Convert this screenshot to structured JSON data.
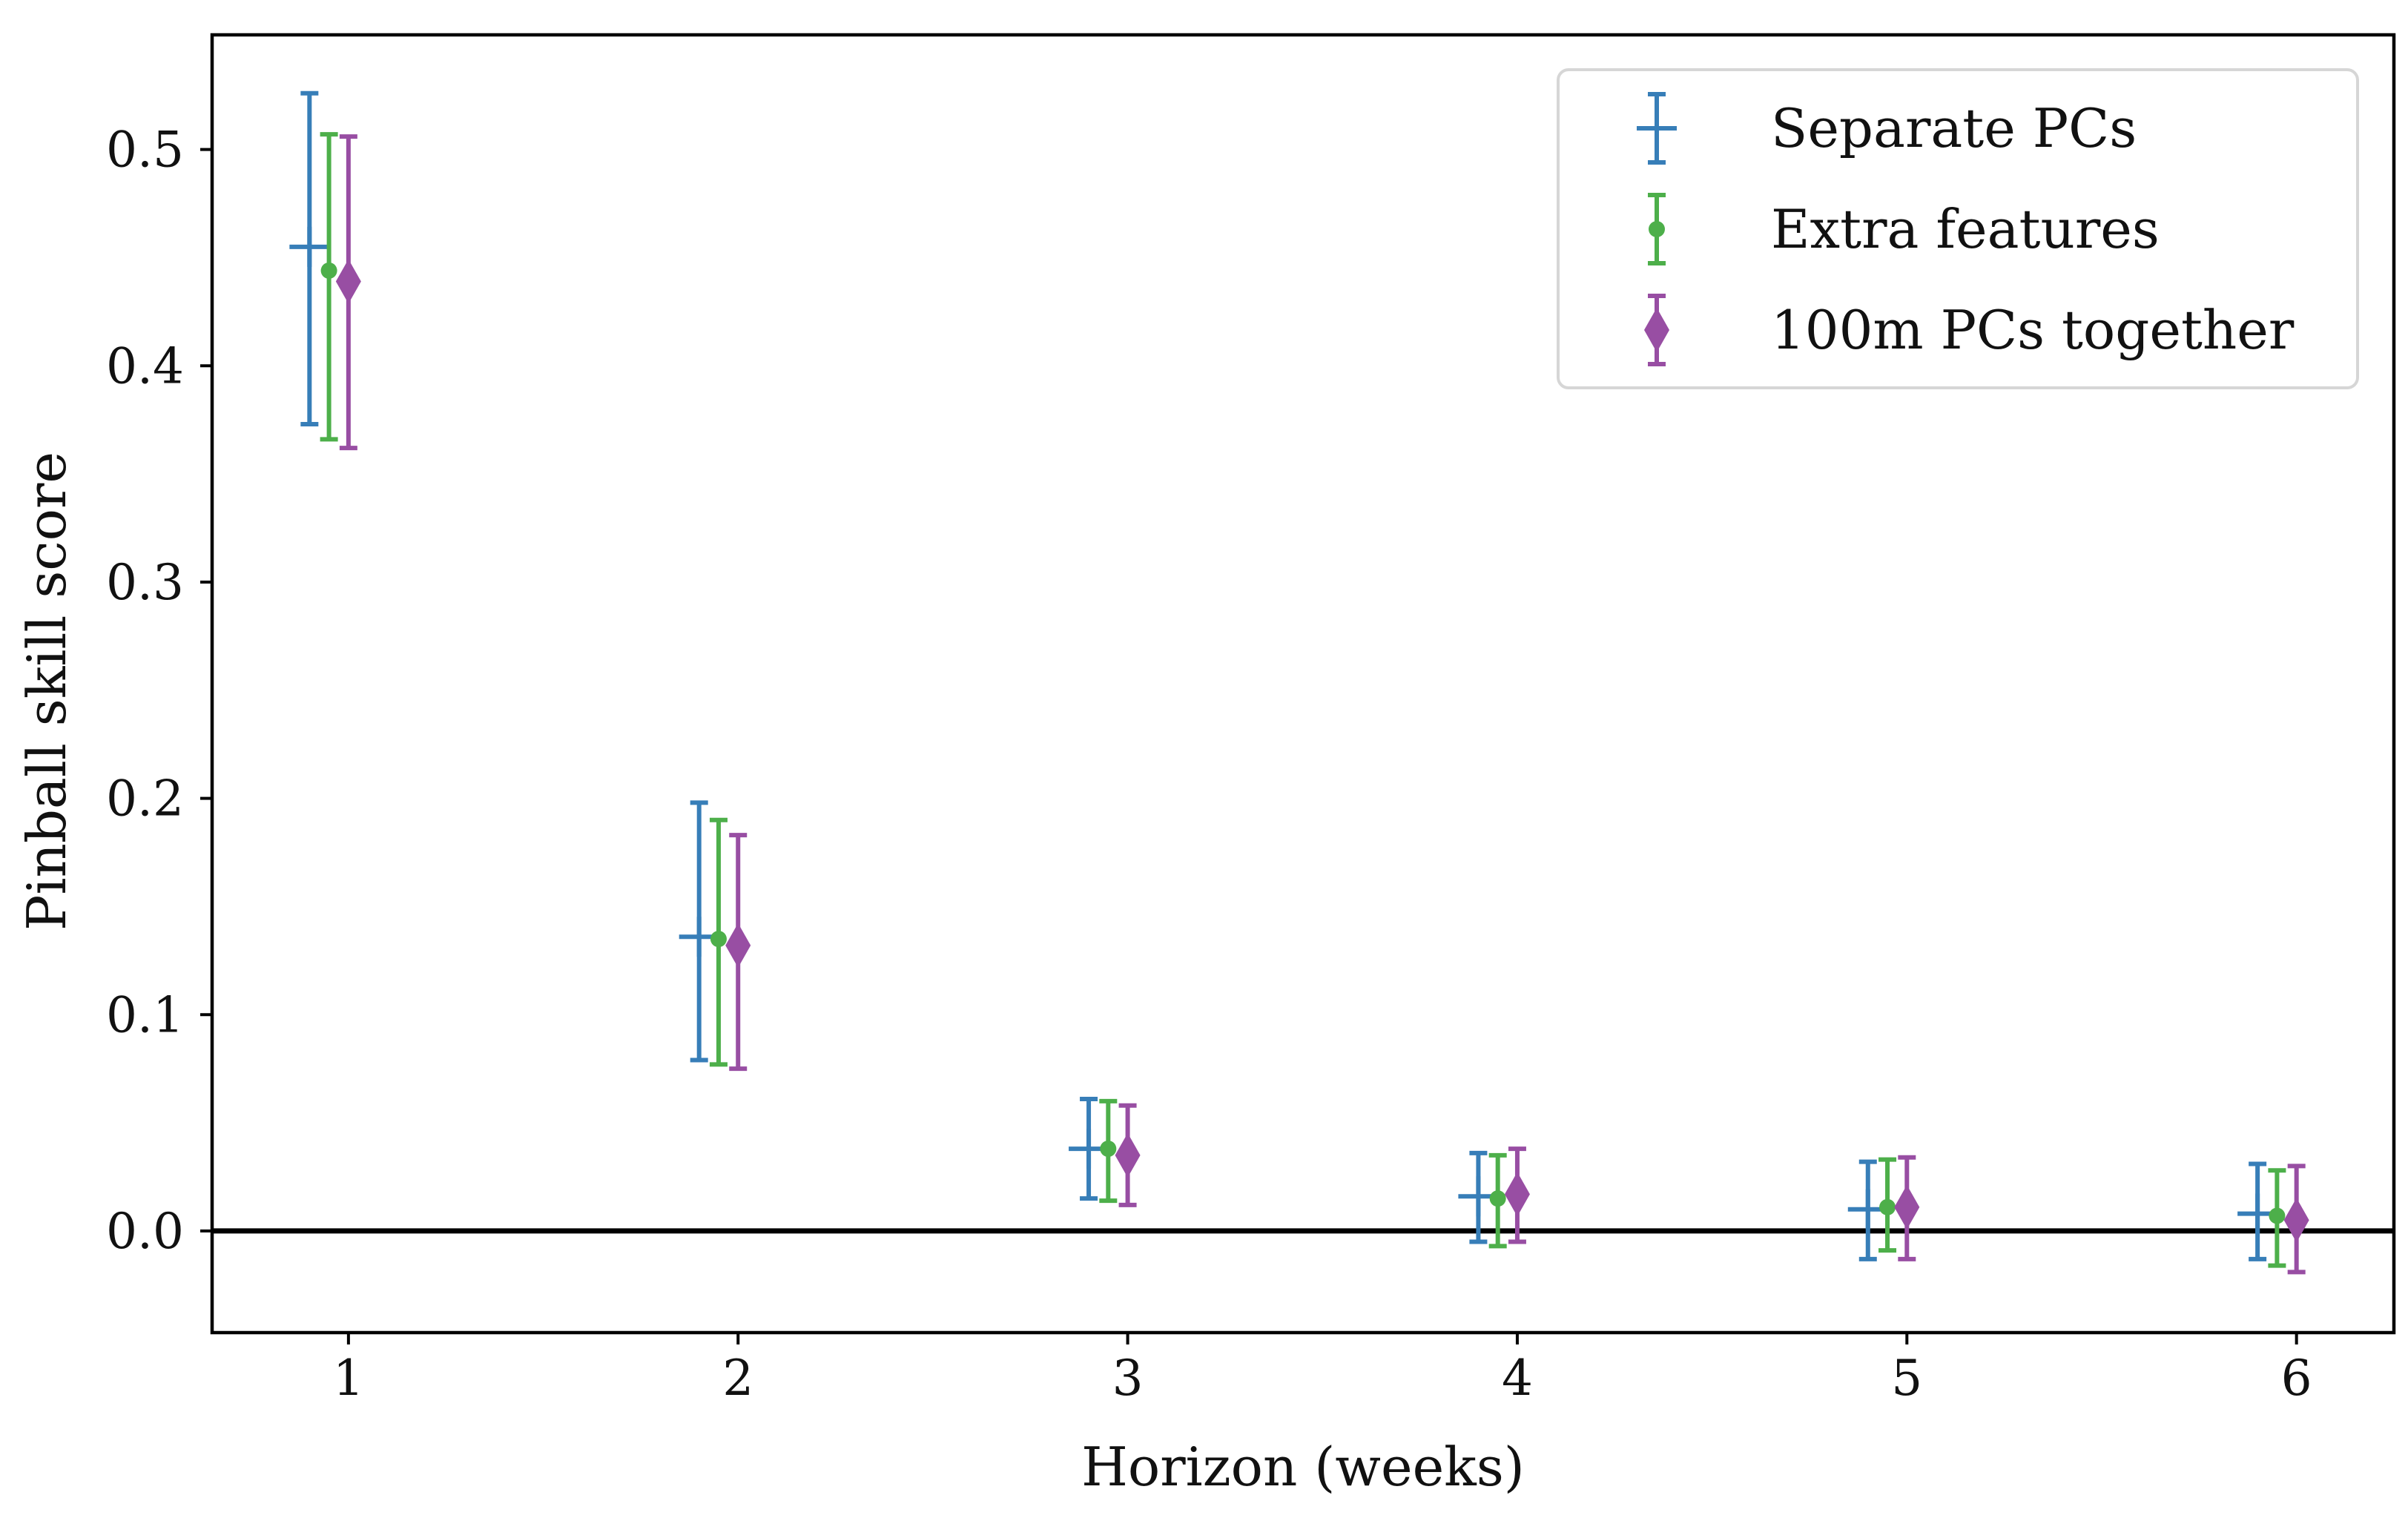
{
  "chart_data": {
    "type": "errorbar",
    "xlabel": "Horizon (weeks)",
    "ylabel": "Pinball skill score",
    "xlim": [
      0.65,
      6.25
    ],
    "ylim": [
      -0.047,
      0.553
    ],
    "x_ticks": [
      1,
      2,
      3,
      4,
      5,
      6
    ],
    "x_tick_labels": [
      "1",
      "2",
      "3",
      "4",
      "5",
      "6"
    ],
    "y_ticks": [
      0.0,
      0.1,
      0.2,
      0.3,
      0.4,
      0.5
    ],
    "y_tick_labels": [
      "0.0",
      "0.1",
      "0.2",
      "0.3",
      "0.4",
      "0.5"
    ],
    "reference_line": {
      "y": 0.0,
      "color": "#000000"
    },
    "grid": false,
    "legend_position": "top-right",
    "series": [
      {
        "name": "Separate PCs",
        "marker": "plus",
        "color": "#377eb8",
        "x_offset": -0.1,
        "points": [
          {
            "x": 1,
            "y": 0.455,
            "low": 0.373,
            "high": 0.526
          },
          {
            "x": 2,
            "y": 0.136,
            "low": 0.079,
            "high": 0.198
          },
          {
            "x": 3,
            "y": 0.038,
            "low": 0.015,
            "high": 0.061
          },
          {
            "x": 4,
            "y": 0.016,
            "low": -0.005,
            "high": 0.036
          },
          {
            "x": 5,
            "y": 0.01,
            "low": -0.013,
            "high": 0.032
          },
          {
            "x": 6,
            "y": 0.008,
            "low": -0.013,
            "high": 0.031
          }
        ]
      },
      {
        "name": "Extra features",
        "marker": "dot",
        "color": "#4daf4a",
        "x_offset": -0.05,
        "points": [
          {
            "x": 1,
            "y": 0.444,
            "low": 0.366,
            "high": 0.507
          },
          {
            "x": 2,
            "y": 0.135,
            "low": 0.077,
            "high": 0.19
          },
          {
            "x": 3,
            "y": 0.038,
            "low": 0.014,
            "high": 0.06
          },
          {
            "x": 4,
            "y": 0.015,
            "low": -0.007,
            "high": 0.035
          },
          {
            "x": 5,
            "y": 0.011,
            "low": -0.009,
            "high": 0.033
          },
          {
            "x": 6,
            "y": 0.007,
            "low": -0.016,
            "high": 0.028
          }
        ]
      },
      {
        "name": "100m PCs together",
        "marker": "diamond",
        "color": "#984ea3",
        "x_offset": 0.0,
        "points": [
          {
            "x": 1,
            "y": 0.439,
            "low": 0.362,
            "high": 0.506
          },
          {
            "x": 2,
            "y": 0.132,
            "low": 0.075,
            "high": 0.183
          },
          {
            "x": 3,
            "y": 0.035,
            "low": 0.012,
            "high": 0.058
          },
          {
            "x": 4,
            "y": 0.017,
            "low": -0.005,
            "high": 0.038
          },
          {
            "x": 5,
            "y": 0.011,
            "low": -0.013,
            "high": 0.034
          },
          {
            "x": 6,
            "y": 0.005,
            "low": -0.019,
            "high": 0.03
          }
        ]
      }
    ]
  }
}
